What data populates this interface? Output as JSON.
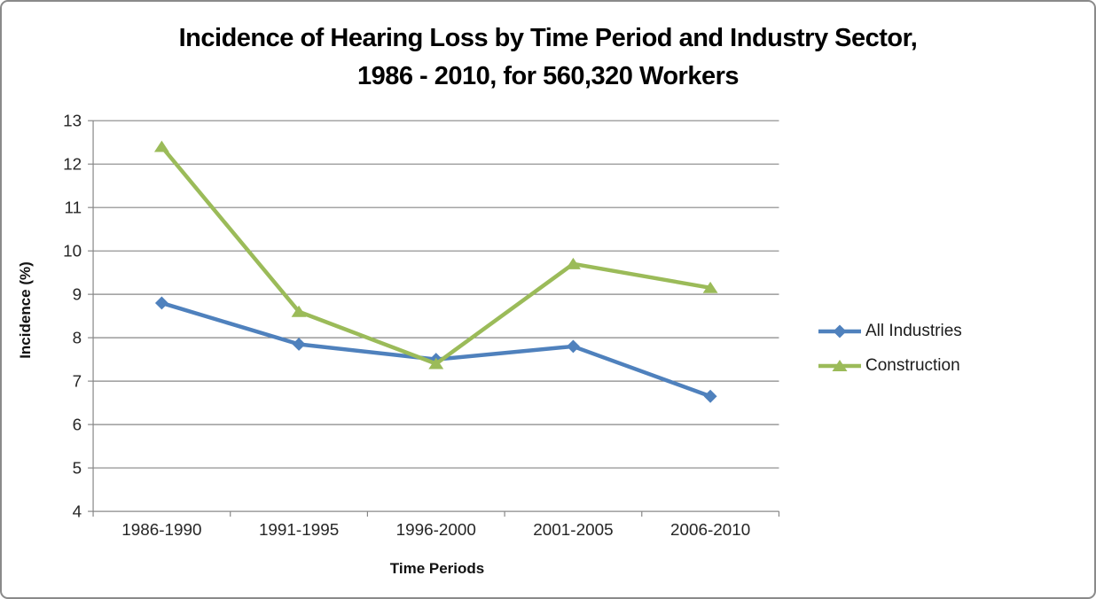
{
  "frame": {
    "border_color": "#8a8a8a",
    "background_color": "#ffffff"
  },
  "chart_data": {
    "type": "line",
    "title": "Incidence of Hearing Loss by Time Period and Industry Sector, 1986 - 2010, for 560,320 Workers",
    "title_lines": [
      "Incidence of Hearing Loss by Time Period and Industry Sector,",
      "1986 - 2010, for 560,320 Workers"
    ],
    "xlabel": "Time Periods",
    "ylabel": "Incidence (%)",
    "categories": [
      "1986-1990",
      "1991-1995",
      "1996-2000",
      "2001-2005",
      "2006-2010"
    ],
    "series": [
      {
        "name": "All Industries",
        "color": "#4F81BD",
        "marker": "diamond",
        "values": [
          8.8,
          7.85,
          7.5,
          7.8,
          6.65
        ]
      },
      {
        "name": "Construction",
        "color": "#9BBB59",
        "marker": "triangle",
        "values": [
          12.4,
          8.6,
          7.4,
          9.7,
          9.15
        ]
      }
    ],
    "ylim": [
      4,
      13
    ],
    "yticks": [
      4,
      5,
      6,
      7,
      8,
      9,
      10,
      11,
      12,
      13
    ],
    "grid": "horizontal",
    "legend_position": "right",
    "axis_color": "#878787",
    "tick_label_color": "#262626"
  }
}
